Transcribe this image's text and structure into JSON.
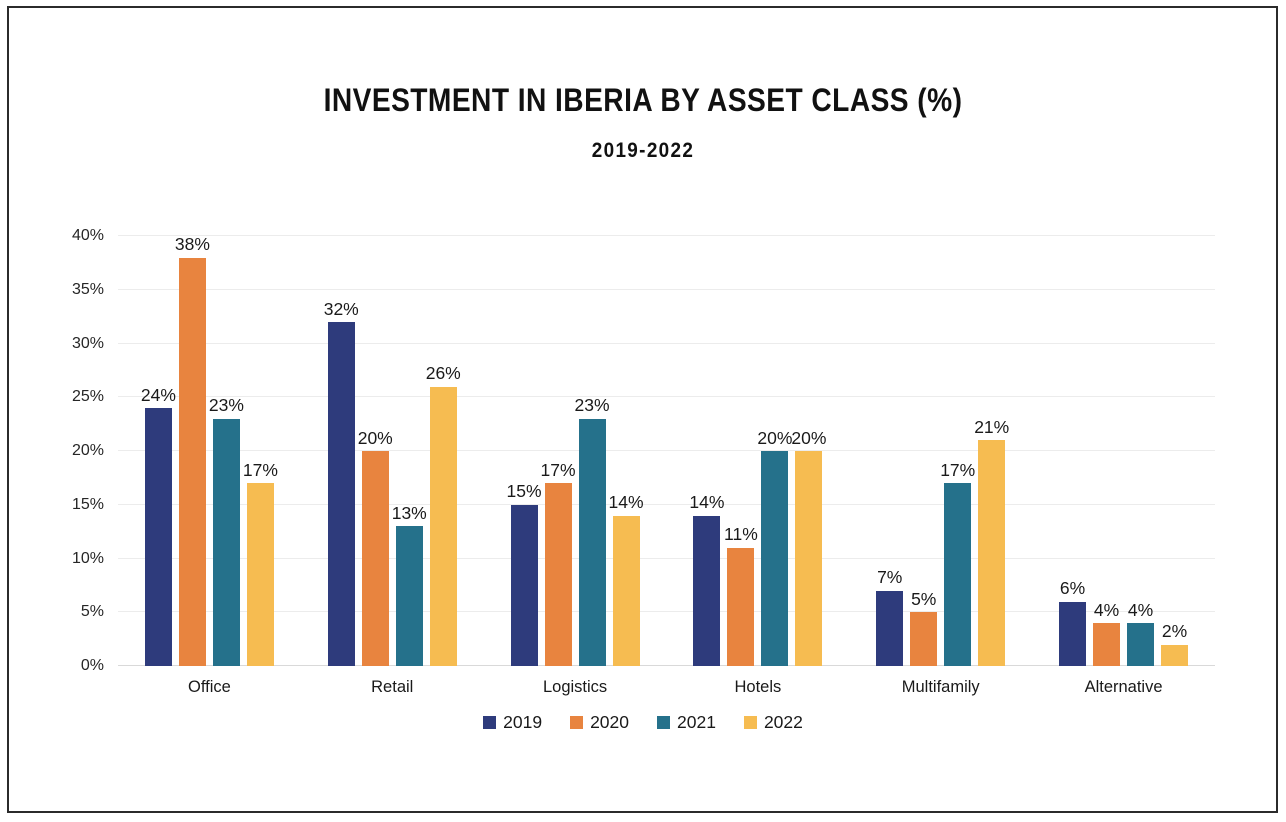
{
  "chart_data": {
    "type": "bar",
    "title": "INVESTMENT IN IBERIA BY ASSET CLASS (%)",
    "subtitle": "2019-2022",
    "categories": [
      "Office",
      "Retail",
      "Logistics",
      "Hotels",
      "Multifamily",
      "Alternative"
    ],
    "series": [
      {
        "name": "2019",
        "color": "#2E3B7C",
        "values": [
          24,
          32,
          15,
          14,
          7,
          6
        ]
      },
      {
        "name": "2020",
        "color": "#E8843F",
        "values": [
          38,
          20,
          17,
          11,
          5,
          4
        ]
      },
      {
        "name": "2021",
        "color": "#25718B",
        "values": [
          23,
          13,
          23,
          20,
          17,
          4
        ]
      },
      {
        "name": "2022",
        "color": "#F6BC51",
        "values": [
          17,
          26,
          14,
          20,
          21,
          2
        ]
      }
    ],
    "ylim": [
      0,
      40
    ],
    "ytick_step": 5,
    "ytick_labels": [
      "0%",
      "5%",
      "10%",
      "15%",
      "20%",
      "25%",
      "30%",
      "35%",
      "40%"
    ],
    "data_label_suffix": "%",
    "grid": true,
    "legend_position": "bottom",
    "legend_entries": [
      "2019",
      "2020",
      "2021",
      "2022"
    ]
  },
  "colors": {
    "background": "#FFFFFF",
    "frame_border": "#2B2B2B",
    "gridline": "#ECECEC",
    "axis_line": "#D9D9D9",
    "text": "#1A1A1A"
  }
}
